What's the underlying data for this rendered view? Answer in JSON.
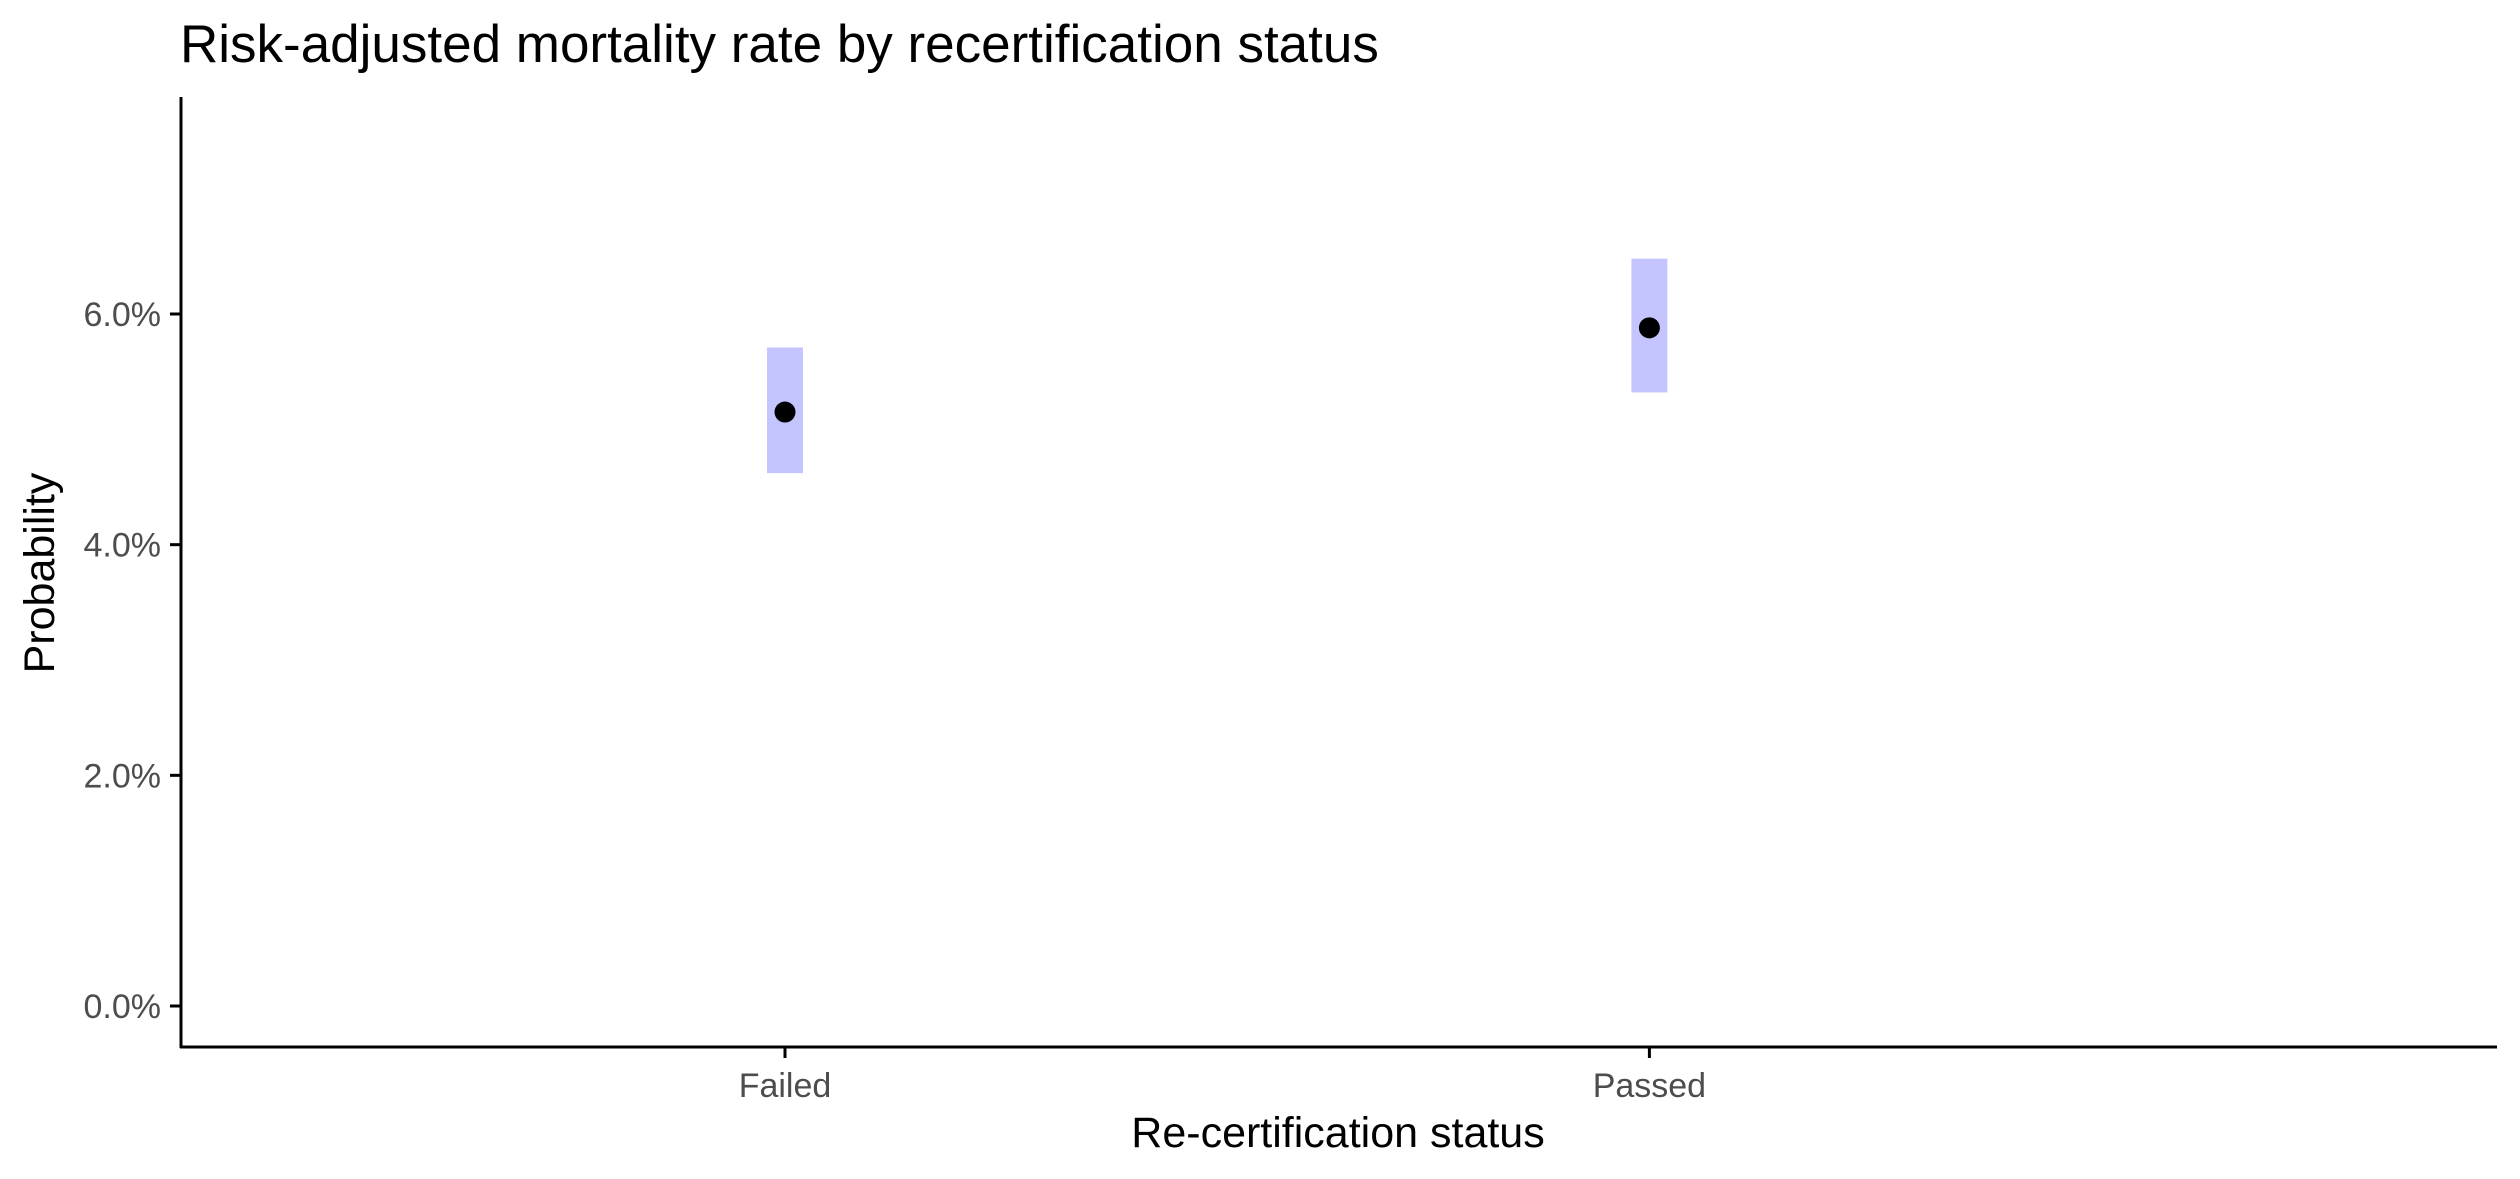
{
  "chart_data": {
    "type": "scatter",
    "title": "Risk-adjusted mortality rate by recertification status",
    "xlabel": "Re-certification status",
    "ylabel": "Probability",
    "categories": [
      "Failed",
      "Passed"
    ],
    "values": [
      0.0515,
      0.0588
    ],
    "ci_lower": [
      0.0462,
      0.0532
    ],
    "ci_upper": [
      0.0571,
      0.0648
    ],
    "ylim": [
      -0.0035,
      0.078
    ],
    "yticks": [
      0.0,
      0.02,
      0.04,
      0.06
    ],
    "ytick_labels": [
      "0.0%",
      "2.0%",
      "4.0%",
      "6.0%"
    ],
    "grid": false,
    "legend": "none",
    "colors": {
      "point": "#000000",
      "interval": "#c4c4ff",
      "axis": "#000000",
      "tick_text": "#4d4d4d"
    }
  }
}
